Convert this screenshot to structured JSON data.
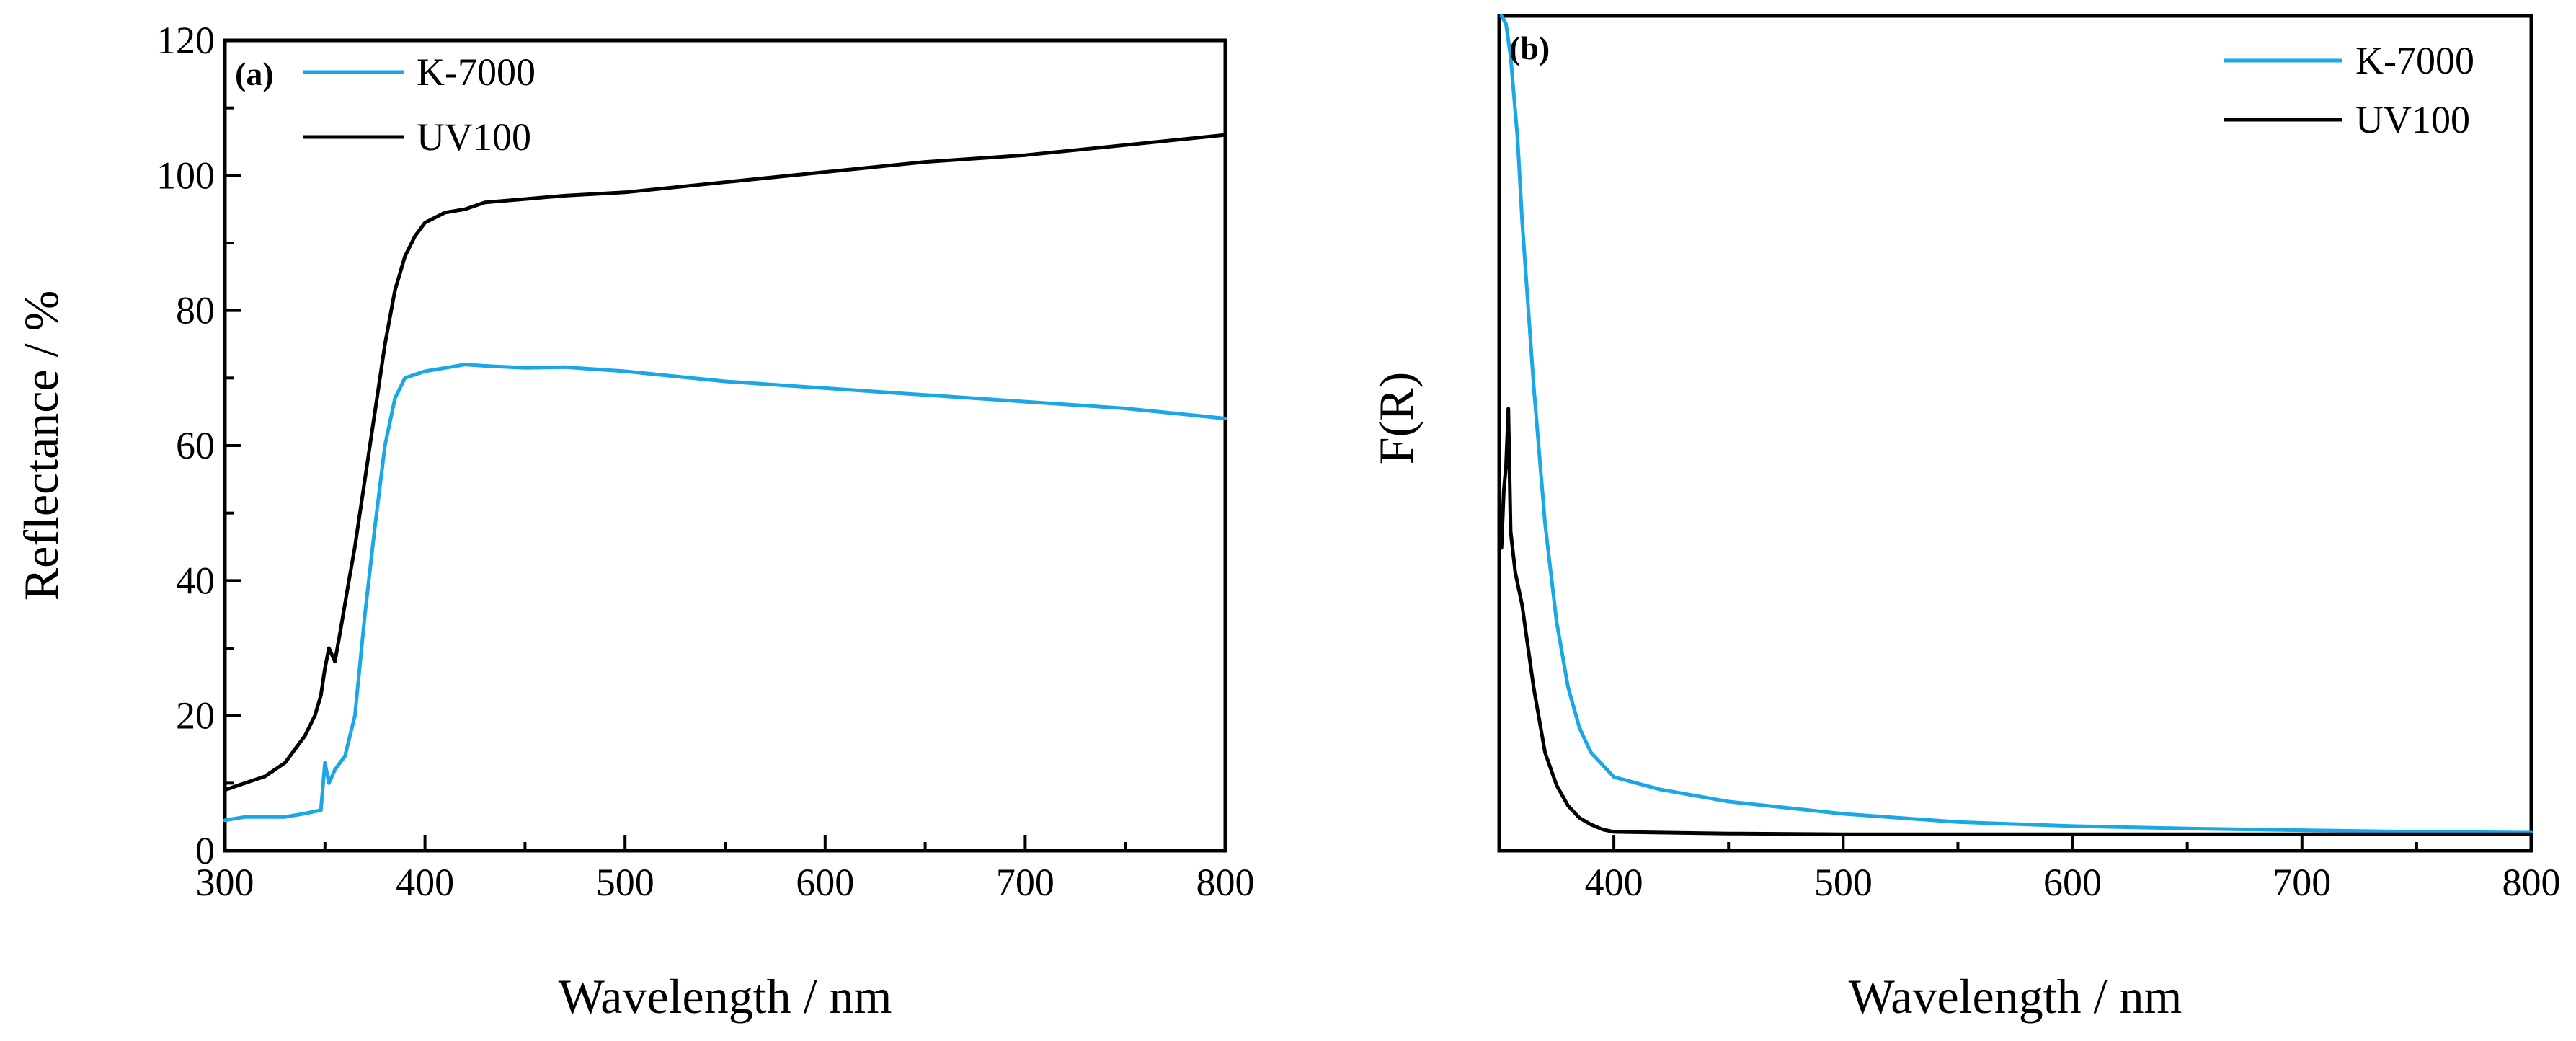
{
  "chart_data": [
    {
      "type": "line",
      "panel_label": "(a)",
      "xlabel": "Wavelength / nm",
      "ylabel": "Reflectance / %",
      "xlim": [
        300,
        800
      ],
      "ylim": [
        0,
        120
      ],
      "x_ticks": [
        300,
        400,
        500,
        600,
        700,
        800
      ],
      "y_ticks": [
        0,
        20,
        40,
        60,
        80,
        100,
        120
      ],
      "legend_position": "top-left",
      "series": [
        {
          "name": "K-7000",
          "color": "#1aa7e6",
          "x": [
            300,
            310,
            320,
            330,
            340,
            348,
            350,
            352,
            355,
            360,
            365,
            370,
            375,
            380,
            385,
            390,
            395,
            400,
            410,
            420,
            430,
            450,
            470,
            500,
            550,
            600,
            650,
            700,
            750,
            800
          ],
          "y": [
            4.5,
            5,
            5,
            5,
            5.5,
            6,
            13,
            10,
            12,
            14,
            20,
            35,
            48,
            60,
            67,
            70,
            70.5,
            71,
            71.5,
            72,
            71.8,
            71.5,
            71.6,
            71,
            69.5,
            68.5,
            67.5,
            66.5,
            65.5,
            64
          ]
        },
        {
          "name": "UV100",
          "color": "#000000",
          "x": [
            300,
            310,
            320,
            330,
            340,
            345,
            348,
            350,
            352,
            355,
            358,
            362,
            365,
            370,
            375,
            380,
            385,
            390,
            395,
            400,
            410,
            420,
            430,
            450,
            470,
            500,
            550,
            600,
            650,
            700,
            750,
            800
          ],
          "y": [
            9,
            10,
            11,
            13,
            17,
            20,
            23,
            27,
            30,
            28,
            33,
            40,
            45,
            55,
            65,
            75,
            83,
            88,
            91,
            93,
            94.5,
            95,
            96,
            96.5,
            97,
            97.5,
            99,
            100.5,
            102,
            103,
            104.5,
            106
          ]
        }
      ]
    },
    {
      "type": "line",
      "panel_label": "(b)",
      "xlabel": "Wavelength / nm",
      "ylabel": "F(R)",
      "xlim": [
        350,
        800
      ],
      "ylim": [
        -0.02,
        1.0
      ],
      "x_ticks": [
        400,
        500,
        600,
        700,
        800
      ],
      "legend_position": "top-right",
      "series": [
        {
          "name": "K-7000",
          "color": "#1aa7e6",
          "x": [
            351,
            353,
            355,
            358,
            360,
            365,
            370,
            375,
            380,
            385,
            390,
            395,
            400,
            420,
            450,
            500,
            550,
            600,
            650,
            700,
            750,
            800
          ],
          "y": [
            1.0,
            0.99,
            0.95,
            0.85,
            0.75,
            0.55,
            0.38,
            0.26,
            0.18,
            0.13,
            0.1,
            0.085,
            0.07,
            0.055,
            0.04,
            0.025,
            0.015,
            0.01,
            0.007,
            0.005,
            0.003,
            0.002
          ]
        },
        {
          "name": "UV100",
          "color": "#000000",
          "x": [
            351,
            352,
            353,
            354,
            355,
            357,
            360,
            365,
            370,
            375,
            380,
            385,
            390,
            395,
            400,
            450,
            500,
            600,
            700,
            800
          ],
          "y": [
            0.35,
            0.42,
            0.45,
            0.52,
            0.37,
            0.32,
            0.28,
            0.18,
            0.1,
            0.06,
            0.035,
            0.02,
            0.012,
            0.006,
            0.003,
            0.001,
            0.0,
            0.0,
            0.0,
            0.0
          ]
        }
      ]
    }
  ]
}
